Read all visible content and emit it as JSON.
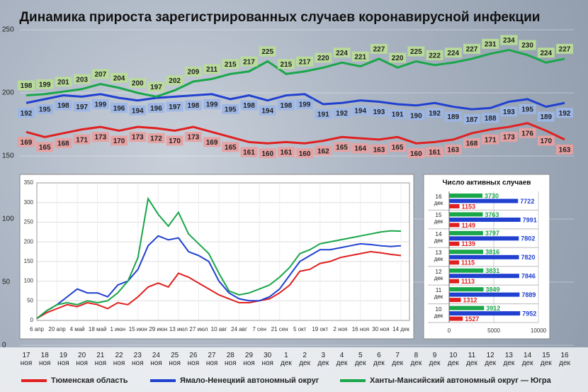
{
  "chart_data": [
    {
      "type": "line",
      "title": "Динамика прироста зарегистрированных случаев коронавирусной инфекции",
      "categories": [
        "17 ноя",
        "18 ноя",
        "19 ноя",
        "20 ноя",
        "21 ноя",
        "22 ноя",
        "23 ноя",
        "24 ноя",
        "25 ноя",
        "26 ноя",
        "27 ноя",
        "28 ноя",
        "29 ноя",
        "30 ноя",
        "1 дек",
        "2 дек",
        "3 дек",
        "4 дек",
        "5 дек",
        "6 дек",
        "7 дек",
        "8 дек",
        "9 дек",
        "10 дек",
        "11 дек",
        "12 дек",
        "13 дек",
        "14 дек",
        "15 дек",
        "16 дек"
      ],
      "series": [
        {
          "name": "Тюменская область",
          "color": "#e02020",
          "values": [
            169,
            165,
            168,
            171,
            173,
            170,
            173,
            172,
            170,
            173,
            169,
            165,
            161,
            160,
            161,
            160,
            162,
            165,
            164,
            163,
            165,
            160,
            161,
            163,
            168,
            171,
            173,
            176,
            170,
            163
          ]
        },
        {
          "name": "Ямало-Ненецкий автономный округ",
          "color": "#2040d0",
          "values": [
            192,
            195,
            198,
            197,
            199,
            196,
            194,
            196,
            197,
            198,
            199,
            195,
            198,
            194,
            198,
            199,
            191,
            192,
            194,
            193,
            191,
            190,
            192,
            189,
            187,
            188,
            193,
            195,
            189,
            192
          ]
        },
        {
          "name": "Ханты-Мансийский автономный округ — Югра",
          "color": "#1aa64a",
          "values": [
            198,
            199,
            201,
            203,
            207,
            204,
            200,
            197,
            202,
            209,
            211,
            215,
            217,
            225,
            215,
            217,
            220,
            224,
            221,
            227,
            220,
            225,
            222,
            224,
            227,
            231,
            234,
            230,
            224,
            227
          ]
        }
      ],
      "ylim": [
        0,
        250
      ],
      "yticks": [
        0,
        50,
        100,
        150,
        200,
        250
      ],
      "grid": true,
      "legend": "bottom"
    },
    {
      "type": "line",
      "categories": [
        "6 апр",
        null,
        "20 апр",
        null,
        "4 май",
        null,
        "18 май",
        null,
        "1 июн",
        null,
        "15 июн",
        null,
        "29 июн",
        null,
        "13 июл",
        null,
        "27 июл",
        null,
        "10 авг",
        null,
        "24 авг",
        null,
        "7 сен",
        null,
        "21 сен",
        null,
        "5 окт",
        null,
        "19 окт",
        null,
        "2 ноя",
        null,
        "16 ноя",
        null,
        "30 ноя",
        null,
        "14 дек"
      ],
      "series": [
        {
          "color": "#e02020",
          "values": [
            5,
            20,
            30,
            40,
            35,
            45,
            40,
            30,
            45,
            40,
            60,
            85,
            95,
            85,
            120,
            110,
            95,
            80,
            65,
            55,
            45,
            45,
            50,
            55,
            70,
            90,
            125,
            130,
            145,
            150,
            160,
            165,
            170,
            175,
            172,
            168,
            165
          ]
        },
        {
          "color": "#2040d0",
          "values": [
            5,
            25,
            40,
            60,
            80,
            70,
            70,
            60,
            90,
            100,
            130,
            190,
            215,
            205,
            210,
            175,
            165,
            150,
            100,
            70,
            55,
            50,
            50,
            60,
            80,
            115,
            150,
            165,
            180,
            180,
            185,
            190,
            195,
            193,
            190,
            188,
            190
          ]
        },
        {
          "color": "#1aa64a",
          "values": [
            5,
            25,
            40,
            45,
            40,
            50,
            45,
            50,
            70,
            100,
            160,
            310,
            270,
            240,
            275,
            220,
            195,
            170,
            120,
            75,
            65,
            70,
            80,
            90,
            110,
            135,
            170,
            180,
            195,
            200,
            205,
            210,
            215,
            220,
            225,
            228,
            227
          ]
        }
      ],
      "ylim": [
        0,
        350
      ],
      "yticks": [
        0,
        50,
        100,
        150,
        200,
        250,
        300,
        350
      ],
      "grid": true
    },
    {
      "type": "bar",
      "orientation": "horizontal",
      "title": "Число активных случаев",
      "categories": [
        "16 дек",
        "15 дек",
        "14 дек",
        "13 дек",
        "12 дек",
        "11 дек",
        "10 дек"
      ],
      "series": [
        {
          "color": "#1aa64a",
          "values": [
            3730,
            3763,
            3797,
            3816,
            3831,
            3849,
            3912
          ]
        },
        {
          "color": "#2040d0",
          "values": [
            7722,
            7991,
            7802,
            7820,
            7846,
            7889,
            7952
          ]
        },
        {
          "color": "#e02020",
          "values": [
            1153,
            1149,
            1139,
            1115,
            1113,
            1312,
            1527
          ]
        }
      ],
      "xlim": [
        0,
        10000
      ],
      "xticks": [
        0,
        5000,
        10000
      ],
      "grid": true
    }
  ]
}
